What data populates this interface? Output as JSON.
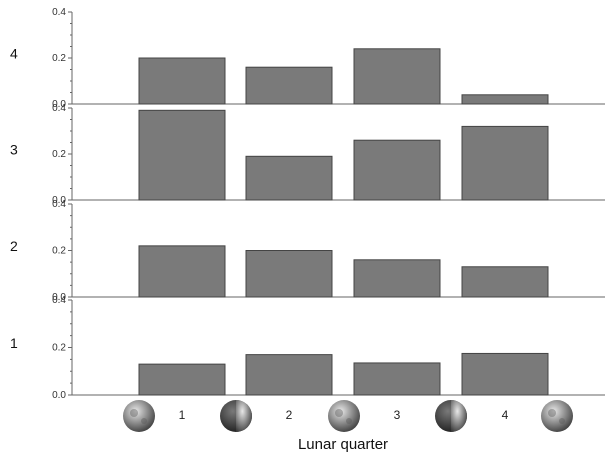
{
  "chart_data": {
    "type": "bar",
    "xlabel": "Lunar quarter",
    "categories": [
      "1",
      "2",
      "3",
      "4"
    ],
    "ylim": [
      0,
      0.4
    ],
    "yticks": [
      "0.0",
      "0.2",
      "0.4"
    ],
    "grid": false,
    "panels": [
      {
        "row_label": "4",
        "values": [
          0.2,
          0.16,
          0.24,
          0.04
        ]
      },
      {
        "row_label": "3",
        "values": [
          0.39,
          0.19,
          0.26,
          0.32
        ]
      },
      {
        "row_label": "2",
        "values": [
          0.22,
          0.2,
          0.16,
          0.13
        ]
      },
      {
        "row_label": "1",
        "values": [
          0.13,
          0.17,
          0.135,
          0.175
        ]
      }
    ],
    "moon_icons": [
      "full-moon-icon",
      "half-moon-icon",
      "full-moon-icon",
      "half-moon-icon",
      "full-moon-icon"
    ],
    "colors": {
      "bar_fill": "#7a7a7a",
      "bar_stroke": "#444444",
      "axis": "#666666"
    }
  }
}
